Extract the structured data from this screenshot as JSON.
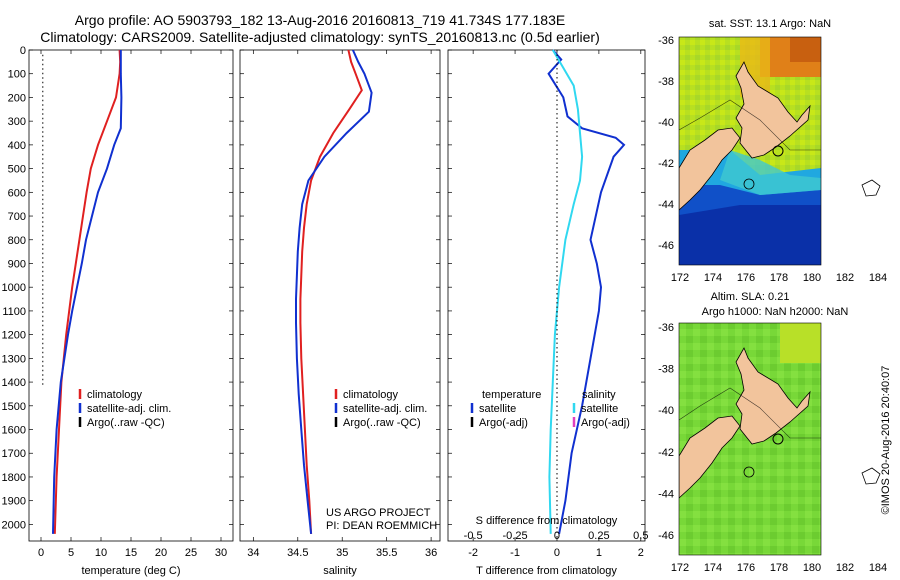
{
  "header": {
    "line1": "Argo profile: AO 5903793_182 13-Aug-2016 20160813_719 41.734S 177.183E",
    "line2": "Climatology: CARS2009. Satellite-adjusted climatology: synTS_20160813.nc (0.5d earlier)"
  },
  "colors": {
    "climatology": "#e02020",
    "satellite": "#1030d0",
    "argo": "#000000",
    "sat_salinity": "#30d8f0",
    "argo_adj_salinity": "#e040c0",
    "land": "#f2c49c"
  },
  "depth_axis": {
    "ticks": [
      0,
      100,
      200,
      300,
      400,
      500,
      600,
      700,
      800,
      900,
      1000,
      1100,
      1200,
      1300,
      1400,
      1500,
      1600,
      1700,
      1800,
      1900,
      2000
    ]
  },
  "chart_data": [
    {
      "type": "line",
      "xlabel": "temperature (deg C)",
      "x_ticks": [
        0,
        5,
        10,
        15,
        20,
        25,
        30
      ],
      "xlim": [
        -2,
        32
      ],
      "ylim": [
        0,
        2070
      ],
      "legend": {
        "placement": "bottom-left",
        "entries": [
          "climatology",
          "satellite-adj. clim.",
          "Argo(..raw -QC)"
        ]
      },
      "series": [
        {
          "name": "climatology",
          "x": [
            13.1,
            13.2,
            13.1,
            12.5,
            11.0,
            9.5,
            8.3,
            7.6,
            7.0,
            6.4,
            5.8,
            5.2,
            4.7,
            4.2,
            3.8,
            3.4,
            3.0,
            2.6,
            2.3
          ],
          "y": [
            0,
            50,
            100,
            200,
            300,
            400,
            500,
            600,
            700,
            800,
            900,
            1000,
            1100,
            1200,
            1300,
            1400,
            1600,
            1800,
            2040
          ]
        },
        {
          "name": "satellite-adj. clim.",
          "x": [
            13.3,
            13.3,
            13.3,
            13.4,
            13.3,
            12.2,
            11.0,
            9.5,
            8.5,
            7.5,
            6.8,
            6.0,
            5.2,
            4.5,
            3.9,
            3.3,
            2.6,
            2.2,
            2.0
          ],
          "y": [
            0,
            50,
            100,
            200,
            330,
            400,
            500,
            600,
            700,
            800,
            900,
            1000,
            1100,
            1200,
            1300,
            1400,
            1600,
            1800,
            2040
          ]
        },
        {
          "name": "Argo(..raw -QC)",
          "x": [
            0.3,
            0.3
          ],
          "y": [
            20,
            1420
          ],
          "dotted": true
        }
      ]
    },
    {
      "type": "line",
      "xlabel": "salinity",
      "x_ticks": [
        34,
        34.5,
        35,
        35.5,
        36
      ],
      "xlim": [
        33.85,
        36.1
      ],
      "ylim": [
        0,
        2070
      ],
      "legend": {
        "placement": "bottom-right",
        "entries": [
          "climatology",
          "satellite-adj. clim.",
          "Argo(..raw -QC)"
        ]
      },
      "annotation": [
        "US ARGO PROJECT",
        "PI: DEAN ROEMMICH"
      ],
      "series": [
        {
          "name": "climatology",
          "x": [
            35.07,
            35.1,
            35.15,
            35.22,
            35.08,
            34.9,
            34.75,
            34.65,
            34.6,
            34.57,
            34.55,
            34.54,
            34.53,
            34.53,
            34.54,
            34.56,
            34.58,
            34.6,
            34.63,
            34.65
          ],
          "y": [
            0,
            50,
            100,
            170,
            250,
            350,
            450,
            550,
            650,
            750,
            850,
            950,
            1050,
            1150,
            1300,
            1450,
            1600,
            1750,
            1900,
            2040
          ]
        },
        {
          "name": "satellite-adj. clim.",
          "x": [
            35.12,
            35.18,
            35.25,
            35.33,
            35.3,
            35.05,
            34.8,
            34.62,
            34.55,
            34.52,
            34.5,
            34.49,
            34.48,
            34.48,
            34.49,
            34.51,
            34.54,
            34.57,
            34.61,
            34.65
          ],
          "y": [
            0,
            50,
            100,
            180,
            260,
            350,
            450,
            550,
            650,
            750,
            850,
            950,
            1050,
            1150,
            1300,
            1450,
            1600,
            1750,
            1900,
            2040
          ]
        }
      ]
    },
    {
      "type": "line",
      "xlabel": "T difference from climatology",
      "x2label": "S difference from climatology",
      "x_ticks": [
        -2,
        -1,
        0,
        1,
        2
      ],
      "x2_ticks": [
        -0.5,
        -0.25,
        0,
        0.25,
        0.5
      ],
      "xlim": [
        -2.6,
        2.1
      ],
      "ylim": [
        0,
        2070
      ],
      "legend": {
        "placement": "bottom",
        "headers": [
          "temperature",
          "salinity"
        ],
        "entries": [
          "satellite",
          "Argo(-adj)",
          "satellite",
          "Argo(-adj)"
        ]
      },
      "series": [
        {
          "name": "temperature satellite",
          "x": [
            -0.1,
            0.1,
            -0.2,
            0.15,
            0.25,
            0.6,
            1.4,
            1.6,
            1.35,
            1.05,
            0.8,
            0.95,
            1.05,
            1.0,
            0.8,
            0.6,
            0.35,
            0.2,
            0.05
          ],
          "y": [
            0,
            40,
            100,
            200,
            280,
            330,
            370,
            400,
            450,
            600,
            800,
            900,
            1000,
            1100,
            1300,
            1500,
            1700,
            1900,
            2040
          ]
        },
        {
          "name": "salinity satellite",
          "x": [
            -0.1,
            0.1,
            0.4,
            0.5,
            0.55,
            0.6,
            0.55,
            0.4,
            0.2,
            0.05,
            -0.05,
            -0.1,
            -0.15,
            -0.18,
            -0.15
          ],
          "y": [
            0,
            60,
            150,
            250,
            350,
            450,
            550,
            650,
            800,
            1000,
            1200,
            1400,
            1600,
            1800,
            2040
          ]
        },
        {
          "name": "zero",
          "x": [
            0,
            0
          ],
          "y": [
            0,
            2060
          ],
          "dotted": true
        }
      ]
    }
  ],
  "maps": [
    {
      "title_lines": [
        "sat. SST: 13.1  Argo: NaN"
      ],
      "x_ticks": [
        "172",
        "174",
        "176",
        "178",
        "180",
        "182",
        "184"
      ],
      "y_ticks": [
        "-36",
        "-38",
        "-40",
        "-42",
        "-44",
        "-46"
      ],
      "kind": "sst"
    },
    {
      "title_lines": [
        "Altim. SLA: 0.21",
        "Argo h1000: NaN h2000: NaN"
      ],
      "x_ticks": [
        "172",
        "174",
        "176",
        "178",
        "180",
        "182",
        "184"
      ],
      "y_ticks": [
        "-36",
        "-38",
        "-40",
        "-42",
        "-44",
        "-46"
      ],
      "kind": "sla"
    }
  ],
  "stamp": "©IMOS 20-Aug-2016 20:40:07"
}
